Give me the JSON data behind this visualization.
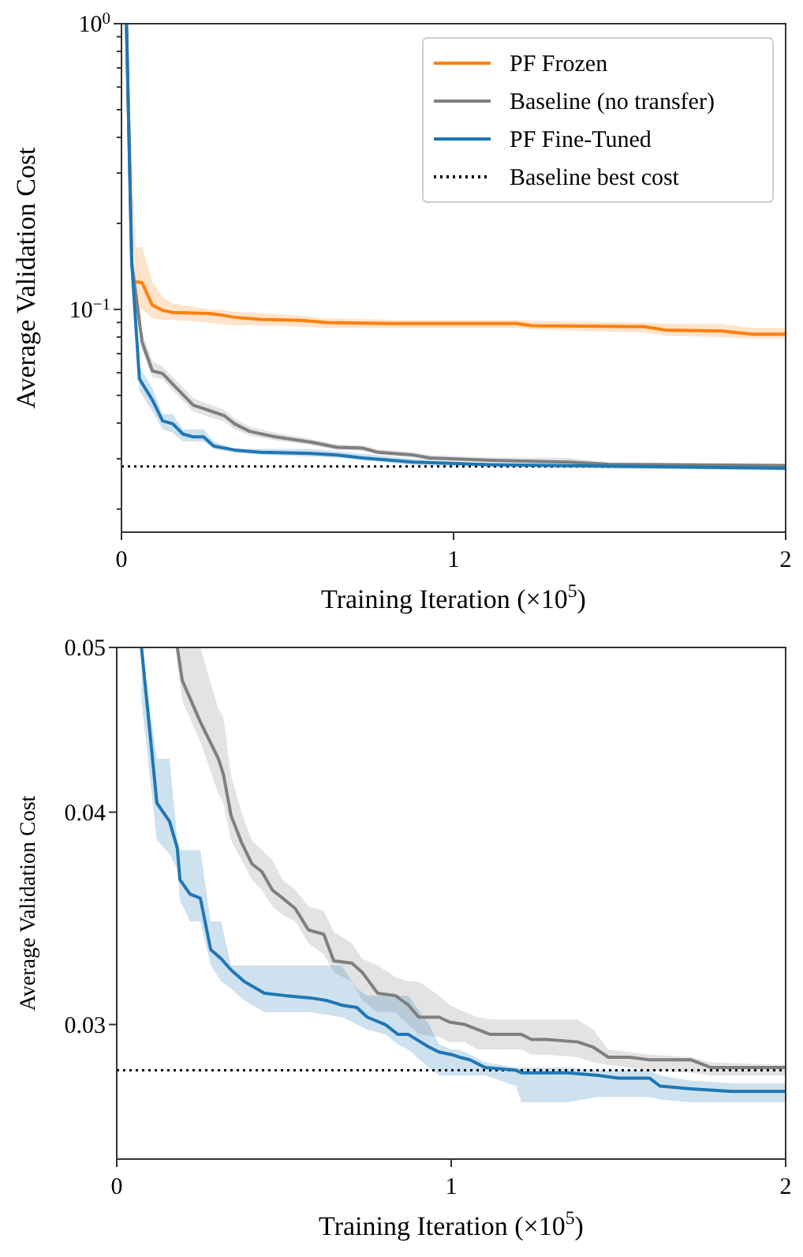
{
  "chart_data": [
    {
      "type": "line",
      "xlabel": "Training Iteration (×10$^{5}$)",
      "ylabel": "Average Validation Cost",
      "log": "y",
      "legend": "top right",
      "xlim": [
        0,
        2
      ],
      "xticks": [
        0,
        1,
        2
      ],
      "ylim": [
        0.0166,
        1
      ],
      "yticks": [
        {
          "value": 0.02,
          "label": null
        },
        {
          "value": 0.03,
          "label": null
        },
        {
          "value": 0.04,
          "label": null
        },
        {
          "value": 0.05,
          "label": null
        },
        {
          "value": 0.06,
          "label": null
        },
        {
          "value": 0.07,
          "label": null
        },
        {
          "value": 0.08,
          "label": null
        },
        {
          "value": 0.09,
          "label": null
        },
        {
          "value": 0.1,
          "label": "10$^{−1}$"
        },
        {
          "value": 0.2,
          "label": null
        },
        {
          "value": 0.3,
          "label": null
        },
        {
          "value": 0.4,
          "label": null
        },
        {
          "value": 0.5,
          "label": null
        },
        {
          "value": 0.6,
          "label": null
        },
        {
          "value": 0.7,
          "label": null
        },
        {
          "value": 0.8,
          "label": null
        },
        {
          "value": 0.9,
          "label": null
        },
        {
          "value": 1,
          "label": "10$^{0}$"
        }
      ],
      "series": [
        {
          "name": "PF Frozen",
          "color": "#ff7f0e",
          "x": [
            0.015,
            0.043,
            0.062,
            0.093,
            0.124,
            0.154,
            0.263,
            0.293,
            0.34,
            0.417,
            0.541,
            0.618,
            0.803,
            1.189,
            1.236,
            1.575,
            1.637,
            1.807,
            1.9,
            2.0
          ],
          "values": [
            null,
            0.125,
            0.124,
            0.1034,
            0.0992,
            0.0975,
            0.0967,
            0.0959,
            0.0938,
            0.0923,
            0.0915,
            0.0899,
            0.0892,
            0.0892,
            0.0877,
            0.087,
            0.0847,
            0.084,
            0.0819,
            0.0819
          ],
          "lower": [
            1,
            0.1,
            0.1,
            0.093,
            0.092,
            0.092,
            0.09,
            0.089,
            0.088,
            0.088,
            0.087,
            0.086,
            0.086,
            0.086,
            0.085,
            0.083,
            0.081,
            0.08,
            0.079,
            0.079
          ],
          "upper": [
            1,
            0.165,
            0.165,
            0.125,
            0.11,
            0.105,
            0.1,
            0.1,
            0.098,
            0.097,
            0.095,
            0.093,
            0.092,
            0.092,
            0.091,
            0.09,
            0.089,
            0.089,
            0.086,
            0.086
          ]
        },
        {
          "name": "Baseline (no transfer)",
          "color": "#7f7f7f",
          "x": [
            0.015,
            0.031,
            0.062,
            0.093,
            0.124,
            0.154,
            0.216,
            0.263,
            0.309,
            0.34,
            0.386,
            0.463,
            0.571,
            0.649,
            0.726,
            0.772,
            0.88,
            0.927,
            1.112,
            1.344,
            1.467,
            2.0
          ],
          "values": [
            1,
            0.145,
            0.0769,
            0.0609,
            0.0596,
            0.0548,
            0.0462,
            0.0443,
            0.0425,
            0.0398,
            0.0374,
            0.0358,
            0.0343,
            0.0329,
            0.0327,
            0.0316,
            0.0309,
            0.0302,
            0.0296,
            0.0292,
            0.0287,
            0.0284
          ],
          "lower": [
            1,
            0.13,
            0.072,
            0.058,
            0.057,
            0.052,
            0.044,
            0.042,
            0.0405,
            0.038,
            0.0362,
            0.0348,
            0.0335,
            0.0322,
            0.032,
            0.031,
            0.0303,
            0.0297,
            0.0291,
            0.0288,
            0.0283,
            0.0281
          ],
          "upper": [
            1,
            0.16,
            0.083,
            0.066,
            0.063,
            0.058,
            0.049,
            0.0465,
            0.0445,
            0.0415,
            0.0388,
            0.037,
            0.0352,
            0.0337,
            0.0334,
            0.0324,
            0.0316,
            0.0309,
            0.0303,
            0.0302,
            0.0291,
            0.0286
          ]
        },
        {
          "name": "PF Fine-Tuned",
          "color": "#1f77b4",
          "x": [
            0.015,
            0.031,
            0.054,
            0.093,
            0.124,
            0.154,
            0.185,
            0.216,
            0.247,
            0.278,
            0.34,
            0.417,
            0.571,
            0.649,
            0.726,
            0.88,
            1.112,
            2.0
          ],
          "values": [
            1,
            0.145,
            0.0571,
            0.0482,
            0.0407,
            0.0398,
            0.0366,
            0.0358,
            0.0358,
            0.0332,
            0.0322,
            0.0316,
            0.0313,
            0.0309,
            0.0302,
            0.0292,
            0.0286,
            0.0278
          ],
          "lower": [
            1,
            0.13,
            0.052,
            0.044,
            0.038,
            0.037,
            0.0345,
            0.0345,
            0.0345,
            0.0325,
            0.0315,
            0.031,
            0.0305,
            0.0303,
            0.0296,
            0.0285,
            0.028,
            0.0273
          ],
          "upper": [
            1,
            0.16,
            0.063,
            0.053,
            0.043,
            0.043,
            0.038,
            0.038,
            0.038,
            0.0345,
            0.0325,
            0.0325,
            0.0325,
            0.0318,
            0.0312,
            0.03,
            0.0288,
            0.0282
          ]
        }
      ],
      "ref_lines": [
        {
          "axis": "y",
          "value": 0.0282,
          "label": "Baseline best cost",
          "color": "#000000",
          "line_style": "dotted"
        }
      ]
    },
    {
      "type": "line",
      "xlabel": "Training Iteration (×10$^{5}$)",
      "ylabel": "Average Validation Cost",
      "log": "y",
      "xlim": [
        0,
        2
      ],
      "xticks": [
        0,
        1,
        2
      ],
      "ylim": [
        0.025,
        0.05
      ],
      "yticks": [
        0.03,
        0.04,
        0.05
      ],
      "series": [
        {
          "color": "#7f7f7f",
          "x": [
            0.181,
            0.196,
            0.25,
            0.304,
            0.319,
            0.342,
            0.373,
            0.404,
            0.434,
            0.465,
            0.496,
            0.534,
            0.573,
            0.619,
            0.649,
            0.703,
            0.734,
            0.78,
            0.833,
            0.872,
            0.903,
            0.964,
            0.995,
            1.041,
            1.079,
            1.117,
            1.21,
            1.24,
            1.286,
            1.378,
            1.424,
            1.47,
            1.532,
            1.593,
            1.716,
            1.777,
            2.0
          ],
          "values": [
            0.05,
            0.0478,
            0.0452,
            0.043,
            0.0421,
            0.0398,
            0.0384,
            0.0373,
            0.0369,
            0.036,
            0.0356,
            0.0351,
            0.0341,
            0.0339,
            0.0327,
            0.0326,
            0.0322,
            0.0313,
            0.0312,
            0.0308,
            0.0303,
            0.0303,
            0.0301,
            0.03,
            0.0298,
            0.0296,
            0.0296,
            0.0294,
            0.0294,
            0.0293,
            0.0291,
            0.0287,
            0.0287,
            0.0286,
            0.0286,
            0.0283,
            0.0283
          ],
          "lower": [
            0.049,
            0.0465,
            0.044,
            0.041,
            0.0405,
            0.0385,
            0.0375,
            0.0365,
            0.036,
            0.0352,
            0.0348,
            0.0345,
            0.0335,
            0.033,
            0.0322,
            0.0318,
            0.031,
            0.0305,
            0.0305,
            0.03,
            0.0296,
            0.0295,
            0.0293,
            0.0293,
            0.029,
            0.029,
            0.029,
            0.0288,
            0.0288,
            0.0287,
            0.0285,
            0.0284,
            0.0283,
            0.0282,
            0.0281,
            0.028,
            0.028
          ],
          "upper": [
            0.05,
            0.05,
            0.05,
            0.046,
            0.0455,
            0.042,
            0.04,
            0.0385,
            0.038,
            0.0375,
            0.0365,
            0.036,
            0.0352,
            0.035,
            0.034,
            0.0335,
            0.0328,
            0.0325,
            0.032,
            0.0318,
            0.0318,
            0.0312,
            0.0308,
            0.0305,
            0.0303,
            0.0302,
            0.0302,
            0.0302,
            0.0302,
            0.0302,
            0.0298,
            0.029,
            0.0289,
            0.0288,
            0.0287,
            0.0285,
            0.0284
          ]
        },
        {
          "color": "#1f77b4",
          "x": [
            0.074,
            0.12,
            0.158,
            0.181,
            0.189,
            0.219,
            0.25,
            0.281,
            0.312,
            0.342,
            0.381,
            0.442,
            0.503,
            0.58,
            0.626,
            0.672,
            0.718,
            0.749,
            0.803,
            0.841,
            0.872,
            0.933,
            0.964,
            1.002,
            1.025,
            1.056,
            1.102,
            1.194,
            1.21,
            1.348,
            1.44,
            1.501,
            1.593,
            1.624,
            1.716,
            1.839,
            2.0
          ],
          "values": [
            0.05,
            0.0405,
            0.0395,
            0.0381,
            0.0365,
            0.0358,
            0.0356,
            0.0332,
            0.0328,
            0.0323,
            0.0318,
            0.0313,
            0.0312,
            0.0311,
            0.031,
            0.0308,
            0.0307,
            0.0303,
            0.03,
            0.0296,
            0.0296,
            0.0291,
            0.0289,
            0.0288,
            0.0287,
            0.0286,
            0.0283,
            0.0282,
            0.0281,
            0.0281,
            0.028,
            0.0279,
            0.0279,
            0.0276,
            0.0275,
            0.0274,
            0.0274
          ],
          "lower": [
            0.0465,
            0.0385,
            0.0378,
            0.037,
            0.0355,
            0.0345,
            0.0345,
            0.0325,
            0.0318,
            0.0315,
            0.031,
            0.0305,
            0.0305,
            0.0305,
            0.0304,
            0.0303,
            0.03,
            0.0298,
            0.0296,
            0.0292,
            0.029,
            0.0283,
            0.028,
            0.028,
            0.028,
            0.028,
            0.028,
            0.0276,
            0.027,
            0.027,
            0.0272,
            0.0272,
            0.0272,
            0.0271,
            0.027,
            0.027,
            0.027
          ],
          "upper": [
            0.05,
            0.043,
            0.043,
            0.0385,
            0.038,
            0.038,
            0.038,
            0.0345,
            0.0345,
            0.0325,
            0.0325,
            0.0325,
            0.0325,
            0.0325,
            0.0325,
            0.0325,
            0.0315,
            0.0312,
            0.0312,
            0.0312,
            0.0312,
            0.03,
            0.0292,
            0.029,
            0.029,
            0.0288,
            0.0285,
            0.0283,
            0.0283,
            0.0283,
            0.0282,
            0.0282,
            0.0282,
            0.028,
            0.0278,
            0.0277,
            0.0277
          ]
        }
      ],
      "ref_lines": [
        {
          "axis": "y",
          "value": 0.0282,
          "color": "#000000",
          "line_style": "dotted"
        }
      ]
    }
  ]
}
